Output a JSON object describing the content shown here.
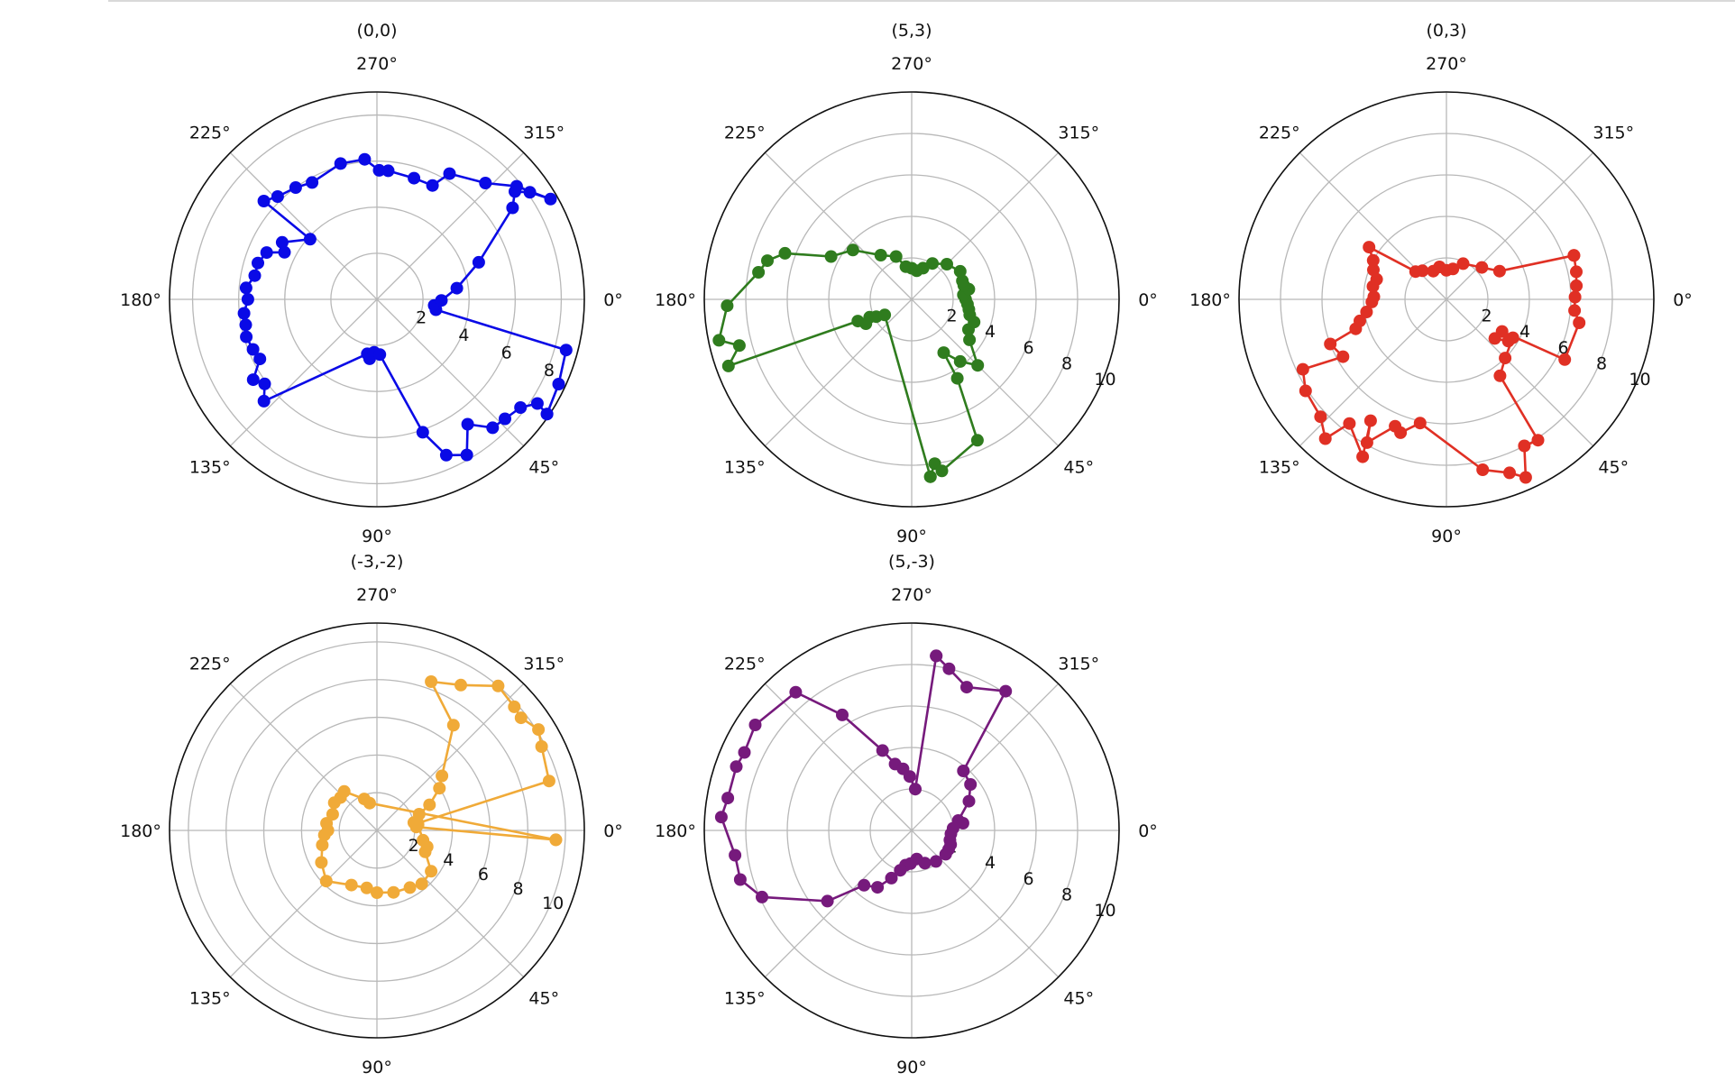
{
  "chart_data": [
    {
      "type": "polar-line",
      "title": "(0,0)",
      "color": "#0a0ae6",
      "r_max": 9,
      "r_ticks": [
        2,
        4,
        6,
        8
      ],
      "theta_ticks": [
        "0°",
        "45°",
        "90°",
        "135°",
        "180°",
        "225°",
        "270°",
        "315°"
      ],
      "theta_direction": "clockwise",
      "series": {
        "theta": [
          34,
          25,
          15,
          10,
          6,
          1,
          352,
          340,
          326,
          322,
          325,
          330,
          321,
          313,
          300,
          296,
          287,
          275,
          271,
          265,
          255,
          241,
          234,
          226,
          221,
          222,
          211,
          207,
          203,
          197,
          191,
          185,
          180,
          174,
          169,
          164,
          158,
          153,
          147,
          143,
          138,
          100,
          97,
          93,
          87,
          71,
          66,
          60,
          54,
          48,
          43,
          37,
          33,
          34
        ],
        "r": [
          8.9,
          8.7,
          8.5,
          2.6,
          2.5,
          2.8,
          3.5,
          4.7,
          7.1,
          7.6,
          8.1,
          8.7,
          7.8,
          6.9,
          6.3,
          5.5,
          5.5,
          5.6,
          5.6,
          6.1,
          6.1,
          5.8,
          6.0,
          6.2,
          6.5,
          3.9,
          4.8,
          4.5,
          5.2,
          5.4,
          5.4,
          5.7,
          5.6,
          5.8,
          5.8,
          5.9,
          5.8,
          5.7,
          6.4,
          6.1,
          6.6,
          2.4,
          2.6,
          2.3,
          2.4,
          6.1,
          7.4,
          7.8,
          6.7,
          7.5,
          7.6,
          7.8,
          8.3,
          8.9
        ]
      }
    },
    {
      "type": "polar-line",
      "title": "(5,3)",
      "color": "#2f7c1e",
      "r_max": 10,
      "r_ticks": [
        2,
        4,
        6,
        8,
        10
      ],
      "theta_ticks": [
        "0°",
        "45°",
        "90°",
        "135°",
        "180°",
        "225°",
        "270°",
        "315°"
      ],
      "theta_direction": "clockwise",
      "series": {
        "theta": [
          84,
          82,
          80,
          65,
          60,
          59,
          52,
          45,
          35,
          28,
          20,
          15,
          10,
          5,
          0,
          355,
          350,
          345,
          340,
          330,
          315,
          300,
          290,
          280,
          270,
          260,
          250,
          235,
          220,
          208,
          200,
          195,
          190,
          178,
          168,
          165,
          160,
          158,
          157,
          154,
          152,
          150,
          84
        ],
        "r": [
          8.6,
          8.0,
          8.4,
          7.5,
          4.4,
          3.0,
          3.8,
          4.5,
          3.4,
          3.1,
          3.2,
          2.9,
          2.8,
          2.7,
          2.6,
          2.5,
          2.8,
          2.6,
          2.6,
          2.7,
          2.4,
          2.0,
          1.6,
          1.4,
          1.5,
          1.6,
          2.2,
          2.6,
          3.7,
          4.4,
          6.5,
          7.2,
          7.5,
          8.9,
          9.5,
          8.6,
          9.4,
          2.8,
          2.2,
          1.9,
          2.5,
          1.5,
          8.6
        ]
      }
    },
    {
      "type": "polar-line",
      "title": "(0,3)",
      "color": "#e03024",
      "r_max": 10,
      "r_ticks": [
        2,
        4,
        6,
        8,
        10
      ],
      "theta_ticks": [
        "0°",
        "45°",
        "90°",
        "135°",
        "180°",
        "225°",
        "270°",
        "315°"
      ],
      "theta_direction": "clockwise",
      "series": {
        "theta": [
          341,
          348,
          354,
          359,
          5,
          10,
          27,
          30,
          39,
          34,
          30,
          45,
          55,
          57,
          62,
          66,
          70,
          78,
          102,
          109,
          112,
          119,
          122,
          118,
          128,
          131,
          137,
          147,
          154,
          151,
          159,
          162,
          166,
          171,
          178,
          182,
          190,
          196,
          202,
          208,
          214,
          222,
          230,
          245,
          258,
          270,
          282,
          295,
          318,
          332,
          341
        ],
        "r": [
          6.5,
          6.4,
          6.3,
          6.2,
          6.2,
          6.5,
          6.4,
          3.1,
          3.0,
          3.6,
          3.7,
          4.0,
          4.5,
          8.1,
          8.0,
          9.4,
          8.9,
          8.4,
          6.1,
          6.8,
          6.6,
          7.9,
          6.9,
          8.6,
          7.6,
          8.9,
          8.3,
          8.1,
          7.7,
          5.7,
          6.0,
          4.6,
          4.3,
          3.9,
          3.6,
          3.5,
          3.6,
          3.5,
          3.8,
          4.0,
          4.5,
          2.0,
          1.8,
          1.5,
          1.6,
          1.4,
          1.5,
          1.9,
          2.3,
          2.9,
          6.5
        ]
      }
    },
    {
      "type": "polar-line",
      "title": "(-3,-2)",
      "color": "#f0aa38",
      "r_max": 11,
      "r_ticks": [
        2,
        4,
        6,
        8,
        10
      ],
      "theta_ticks": [
        "0°",
        "45°",
        "90°",
        "135°",
        "180°",
        "225°",
        "270°",
        "315°"
      ],
      "theta_direction": "clockwise",
      "series": {
        "theta": [
          3,
          355,
          350,
          344,
          333,
          328,
          322,
          318,
          310,
          300,
          290,
          306,
          320,
          326,
          334,
          339,
          348,
          352,
          12,
          18,
          24,
          37,
          50,
          60,
          75,
          90,
          100,
          115,
          135,
          150,
          165,
          175,
          180,
          188,
          200,
          213,
          222,
          230,
          248,
          255,
          3
        ],
        "r": [
          9.5,
          2.1,
          2.2,
          9.5,
          9.8,
          10.1,
          9.7,
          9.8,
          10.0,
          8.9,
          8.4,
          6.9,
          4.5,
          4.0,
          3.1,
          2.4,
          2.0,
          2.2,
          2.5,
          2.8,
          2.8,
          3.6,
          3.7,
          3.5,
          3.4,
          3.3,
          3.1,
          3.2,
          3.8,
          3.4,
          3.0,
          2.8,
          2.6,
          2.7,
          2.5,
          2.7,
          2.6,
          2.7,
          1.8,
          1.5,
          9.5
        ]
      }
    },
    {
      "type": "polar-line",
      "title": "(5,-3)",
      "color": "#761a7c",
      "r_max": 10,
      "r_ticks": [
        2,
        4,
        6,
        8,
        10
      ],
      "theta_ticks": [
        "0°",
        "45°",
        "90°",
        "135°",
        "180°",
        "225°",
        "270°",
        "315°"
      ],
      "theta_direction": "clockwise",
      "series": {
        "theta": [
          278,
          283,
          291,
          304,
          311,
          322,
          333,
          348,
          352,
          357,
          5,
          14,
          20,
          27,
          35,
          52,
          68,
          80,
          92,
          100,
          106,
          113,
          121,
          131,
          140,
          156,
          164,
          172,
          184,
          190,
          200,
          205,
          214,
          230,
          239,
          250,
          256,
          262,
          268,
          275,
          278
        ],
        "r": [
          8.5,
          8.0,
          7.4,
          8.1,
          3.8,
          3.6,
          3.1,
          2.3,
          2.5,
          2.0,
          1.9,
          1.9,
          2.0,
          2.0,
          2.0,
          1.9,
          1.7,
          1.4,
          1.6,
          1.7,
          2.0,
          2.5,
          3.2,
          3.5,
          5.3,
          7.9,
          8.6,
          8.6,
          9.2,
          9.0,
          9.0,
          8.9,
          9.1,
          8.7,
          6.5,
          4.1,
          3.3,
          3.0,
          2.6,
          2.0,
          8.5
        ]
      }
    }
  ]
}
